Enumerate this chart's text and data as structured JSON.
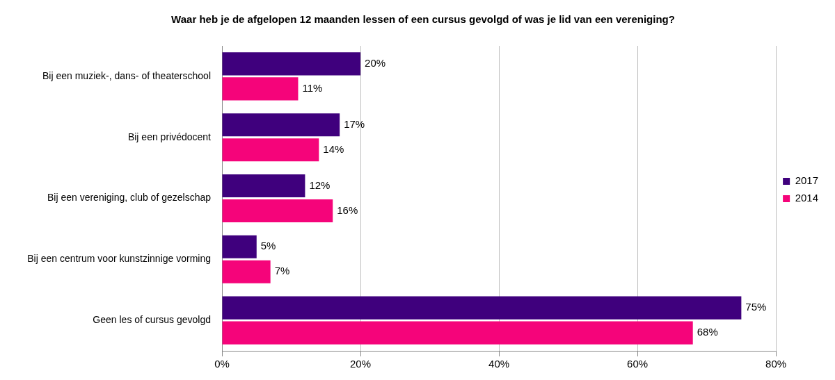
{
  "chart_data": {
    "type": "bar",
    "orientation": "horizontal",
    "title": "Waar heb je de afgelopen 12 maanden lessen of een cursus gevolgd of was je lid van een vereniging?",
    "categories": [
      "Bij een muziek-, dans- of theaterschool",
      "Bij een privédocent",
      "Bij een vereniging, club of gezelschap",
      "Bij een centrum voor kunstzinnige vorming",
      "Geen les of cursus gevolgd"
    ],
    "series": [
      {
        "name": "2017",
        "color": "#3f007d",
        "values": [
          20,
          17,
          12,
          5,
          75
        ],
        "value_labels": [
          "20%",
          "17%",
          "12%",
          "5%",
          "75%"
        ]
      },
      {
        "name": "2014",
        "color": "#f5047a",
        "values": [
          11,
          14,
          16,
          7,
          68
        ],
        "value_labels": [
          "11%",
          "14%",
          "16%",
          "7%",
          "68%"
        ]
      }
    ],
    "xlim": [
      0,
      80
    ],
    "xticks": [
      {
        "value": 0,
        "label": "0%"
      },
      {
        "value": 20,
        "label": "20%"
      },
      {
        "value": 40,
        "label": "40%"
      },
      {
        "value": 60,
        "label": "60%"
      },
      {
        "value": 80,
        "label": "80%"
      }
    ],
    "grid": "x",
    "legend": "right"
  }
}
